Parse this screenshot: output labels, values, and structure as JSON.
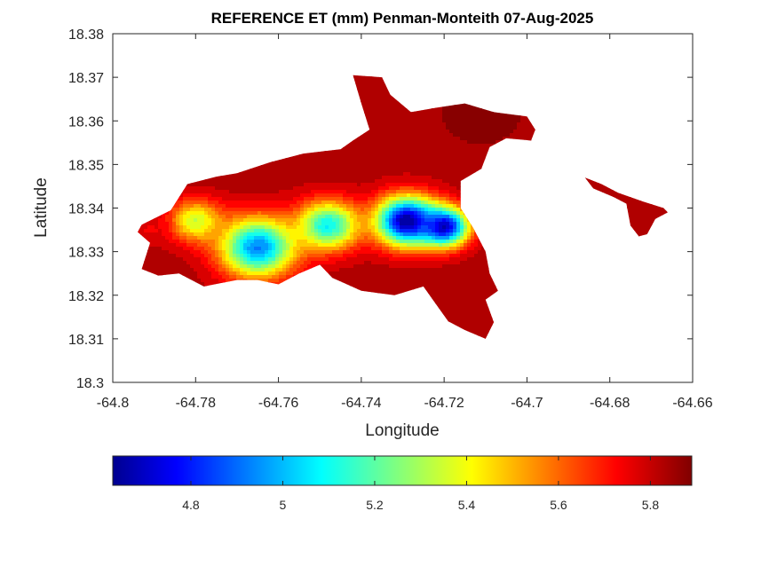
{
  "chart_data": {
    "type": "heatmap",
    "title": "REFERENCE ET (mm) Penman-Monteith 07-Aug-2025",
    "xlabel": "Longitude",
    "ylabel": "Latitude",
    "xlim": [
      -64.8,
      -64.66
    ],
    "ylim": [
      18.3,
      18.38
    ],
    "x_ticks": [
      -64.8,
      -64.78,
      -64.76,
      -64.74,
      -64.72,
      -64.7,
      -64.68,
      -64.66
    ],
    "x_tick_labels": [
      "-64.8",
      "-64.78",
      "-64.76",
      "-64.74",
      "-64.72",
      "-64.7",
      "-64.68",
      "-64.66"
    ],
    "y_ticks": [
      18.3,
      18.31,
      18.32,
      18.33,
      18.34,
      18.35,
      18.36,
      18.37,
      18.38
    ],
    "y_tick_labels": [
      "18.3",
      "18.31",
      "18.32",
      "18.33",
      "18.34",
      "18.35",
      "18.36",
      "18.37",
      "18.38"
    ],
    "colormap": "jet",
    "colorbar": {
      "placement": "bottom",
      "range": [
        4.63,
        5.89
      ],
      "ticks": [
        4.8,
        5.0,
        5.2,
        5.4,
        5.6,
        5.8
      ],
      "tick_labels": [
        "4.8",
        "5",
        "5.2",
        "5.4",
        "5.6",
        "5.8"
      ]
    },
    "island_outline": [
      [
        -64.793,
        18.3362
      ],
      [
        -64.786,
        18.3395
      ],
      [
        -64.782,
        18.3455
      ],
      [
        -64.775,
        18.3472
      ],
      [
        -64.77,
        18.348
      ],
      [
        -64.762,
        18.3505
      ],
      [
        -64.754,
        18.3525
      ],
      [
        -64.745,
        18.3535
      ],
      [
        -64.742,
        18.3555
      ],
      [
        -64.738,
        18.358
      ],
      [
        -64.74,
        18.364
      ],
      [
        -64.742,
        18.3705
      ],
      [
        -64.735,
        18.37
      ],
      [
        -64.733,
        18.366
      ],
      [
        -64.728,
        18.362
      ],
      [
        -64.722,
        18.363
      ],
      [
        -64.715,
        18.364
      ],
      [
        -64.708,
        18.362
      ],
      [
        -64.7,
        18.361
      ],
      [
        -64.698,
        18.358
      ],
      [
        -64.699,
        18.3555
      ],
      [
        -64.705,
        18.356
      ],
      [
        -64.709,
        18.354
      ],
      [
        -64.711,
        18.349
      ],
      [
        -64.716,
        18.3462
      ],
      [
        -64.716,
        18.34
      ],
      [
        -64.713,
        18.3355
      ],
      [
        -64.71,
        18.33
      ],
      [
        -64.709,
        18.325
      ],
      [
        -64.707,
        18.321
      ],
      [
        -64.71,
        18.319
      ],
      [
        -64.708,
        18.3138
      ],
      [
        -64.71,
        18.31
      ],
      [
        -64.715,
        18.312
      ],
      [
        -64.719,
        18.314
      ],
      [
        -64.722,
        18.318
      ],
      [
        -64.725,
        18.322
      ],
      [
        -64.732,
        18.32
      ],
      [
        -64.74,
        18.321
      ],
      [
        -64.747,
        18.324
      ],
      [
        -64.75,
        18.327
      ],
      [
        -64.755,
        18.325
      ],
      [
        -64.76,
        18.3225
      ],
      [
        -64.765,
        18.3235
      ],
      [
        -64.77,
        18.3235
      ],
      [
        -64.778,
        18.322
      ],
      [
        -64.784,
        18.325
      ],
      [
        -64.789,
        18.3245
      ],
      [
        -64.793,
        18.326
      ],
      [
        -64.791,
        18.332
      ],
      [
        -64.794,
        18.3345
      ]
    ],
    "tail_outline": [
      [
        -64.686,
        18.347
      ],
      [
        -64.682,
        18.3455
      ],
      [
        -64.678,
        18.3435
      ],
      [
        -64.672,
        18.3415
      ],
      [
        -64.667,
        18.34
      ],
      [
        -64.666,
        18.339
      ],
      [
        -64.669,
        18.3375
      ],
      [
        -64.671,
        18.334
      ],
      [
        -64.673,
        18.3335
      ],
      [
        -64.675,
        18.336
      ],
      [
        -64.676,
        18.341
      ],
      [
        -64.679,
        18.3425
      ],
      [
        -64.684,
        18.3445
      ]
    ],
    "field_centers": [
      {
        "lon": -64.729,
        "lat": 18.337,
        "value": 4.65,
        "radius": 0.007
      },
      {
        "lon": -64.72,
        "lat": 18.3357,
        "value": 4.7,
        "radius": 0.0055
      },
      {
        "lon": -64.765,
        "lat": 18.331,
        "value": 4.95,
        "radius": 0.0085
      },
      {
        "lon": -64.748,
        "lat": 18.336,
        "value": 5.1,
        "radius": 0.007
      },
      {
        "lon": -64.78,
        "lat": 18.337,
        "value": 5.35,
        "radius": 0.006
      },
      {
        "lon": -64.711,
        "lat": 18.362,
        "value": 5.9,
        "radius": 0.009
      },
      {
        "lon": -64.791,
        "lat": 18.335,
        "value": 5.75,
        "radius": 0.004
      },
      {
        "lon": -64.712,
        "lat": 18.317,
        "value": 5.85,
        "radius": 0.006
      }
    ]
  }
}
